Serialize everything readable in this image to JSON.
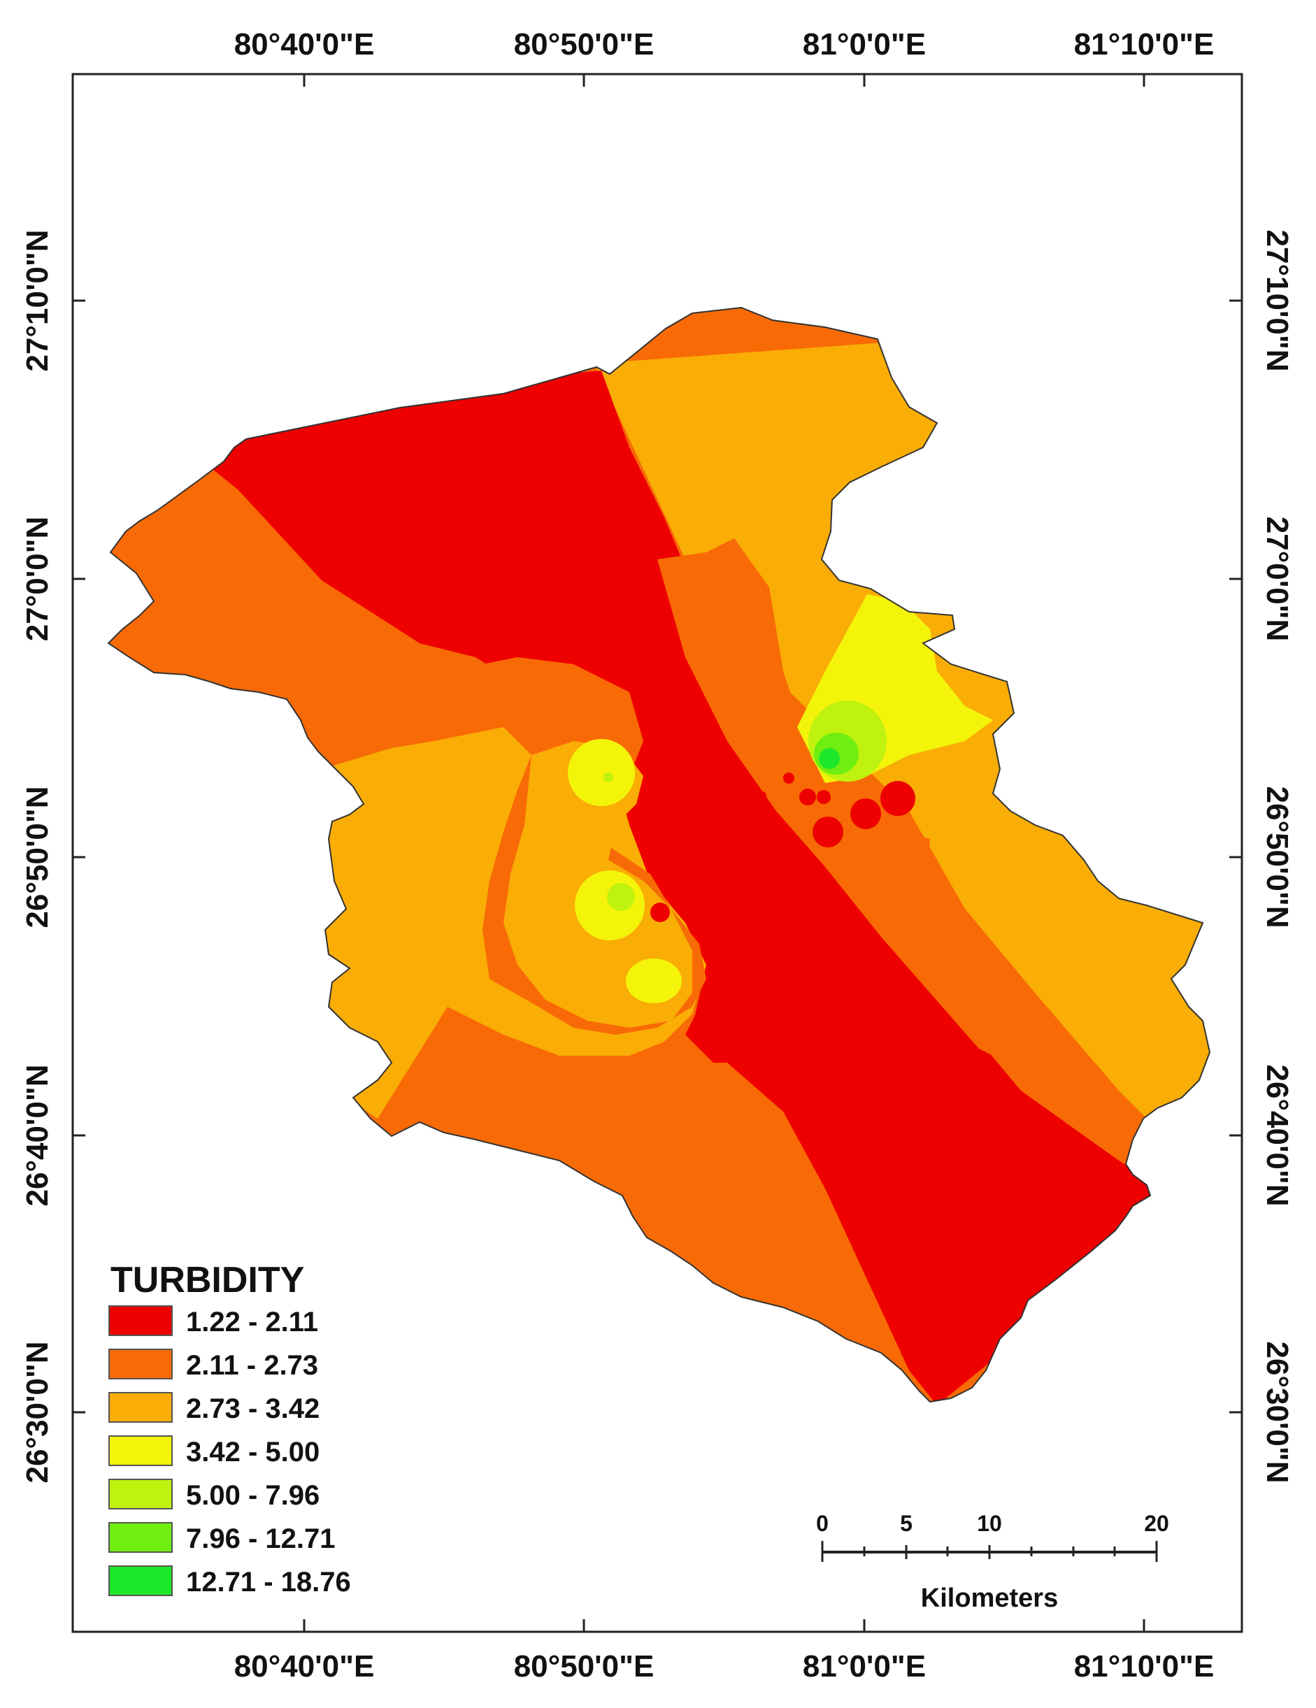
{
  "map": {
    "top_lon_labels": [
      "80°40'0\"E",
      "80°50'0\"E",
      "81°0'0\"E",
      "81°10'0\"E"
    ],
    "bottom_lon_labels": [
      "80°40'0\"E",
      "80°50'0\"E",
      "81°0'0\"E",
      "81°10'0\"E"
    ],
    "left_lat_labels": [
      "27°10'0\"N",
      "27°0'0\"N",
      "26°50'0\"N",
      "26°40'0\"N",
      "26°30'0\"N"
    ],
    "right_lat_labels": [
      "27°10'0\"N",
      "27°0'0\"N",
      "26°50'0\"N",
      "26°40'0\"N",
      "26°30'0\"N"
    ]
  },
  "legend": {
    "title": "TURBIDITY",
    "items": [
      {
        "label": "1.22 - 2.11",
        "color": "#ee0000"
      },
      {
        "label": "2.11 - 2.73",
        "color": "#f86a05"
      },
      {
        "label": "2.73 - 3.42",
        "color": "#f9ad05"
      },
      {
        "label": "3.42 - 5.00",
        "color": "#f4f40a"
      },
      {
        "label": "5.00 - 7.96",
        "color": "#bff20e"
      },
      {
        "label": "7.96 - 12.71",
        "color": "#70ee10"
      },
      {
        "label": "12.71 - 18.76",
        "color": "#1ee82a"
      }
    ]
  },
  "scale_bar": {
    "ticks": [
      "0",
      "5",
      "10",
      "20"
    ],
    "unit": "Kilometers"
  }
}
